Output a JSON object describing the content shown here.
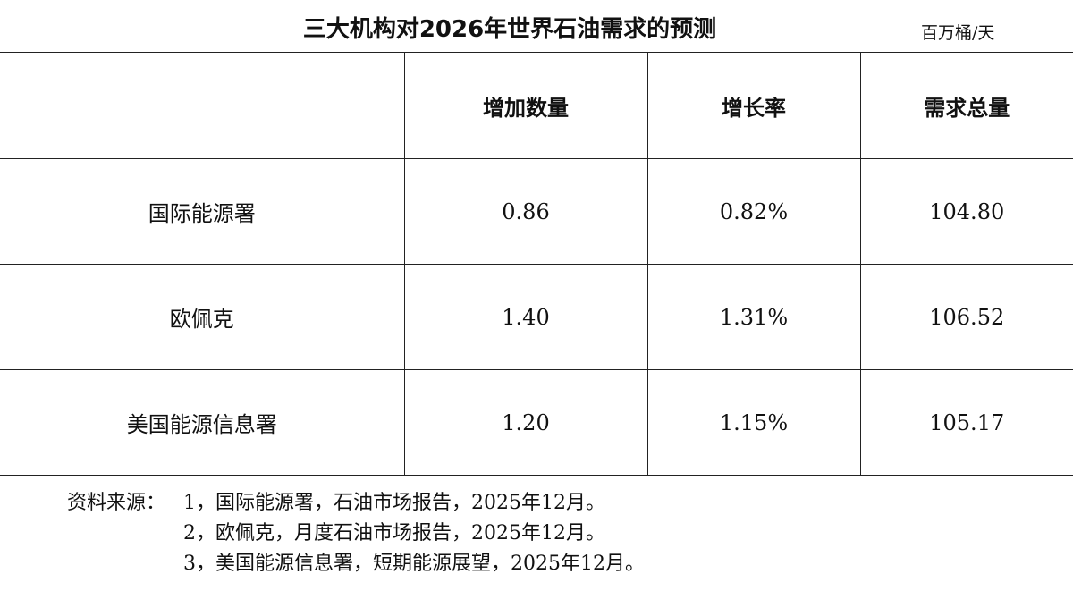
{
  "header": {
    "title": "三大机构对2026年世界石油需求的预测",
    "unit": "百万桶/天"
  },
  "table": {
    "columns": [
      "增加数量",
      "增长率",
      "需求总量"
    ],
    "rows": [
      [
        "国际能源署",
        "0.86",
        "0.82%",
        "104.80"
      ],
      [
        "欧佩克",
        "1.40",
        "1.31%",
        "106.52"
      ],
      [
        "美国能源信息署",
        "1.20",
        "1.15%",
        "105.17"
      ]
    ]
  },
  "footnotes": {
    "label": "资料来源：",
    "items": [
      "1，国际能源署，石油市场报告，2025年12月。",
      "2，欧佩克，月度石油市场报告，2025年12月。",
      "3，美国能源信息署，短期能源展望，2025年12月。"
    ]
  }
}
